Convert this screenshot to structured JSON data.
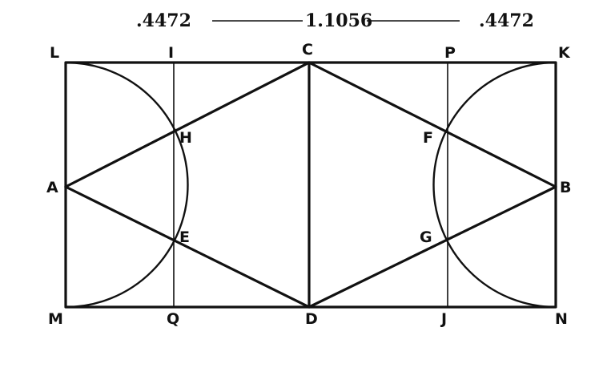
{
  "dimensions": {
    "left": ".4472",
    "middle": "1.1056",
    "right": ".4472"
  },
  "points": {
    "L": "L",
    "I": "I",
    "C": "C",
    "P": "P",
    "K": "K",
    "H": "H",
    "F": "F",
    "A": "A",
    "B": "B",
    "E": "E",
    "G": "G",
    "M": "M",
    "Q": "Q",
    "D": "D",
    "J": "J",
    "N": "N"
  }
}
